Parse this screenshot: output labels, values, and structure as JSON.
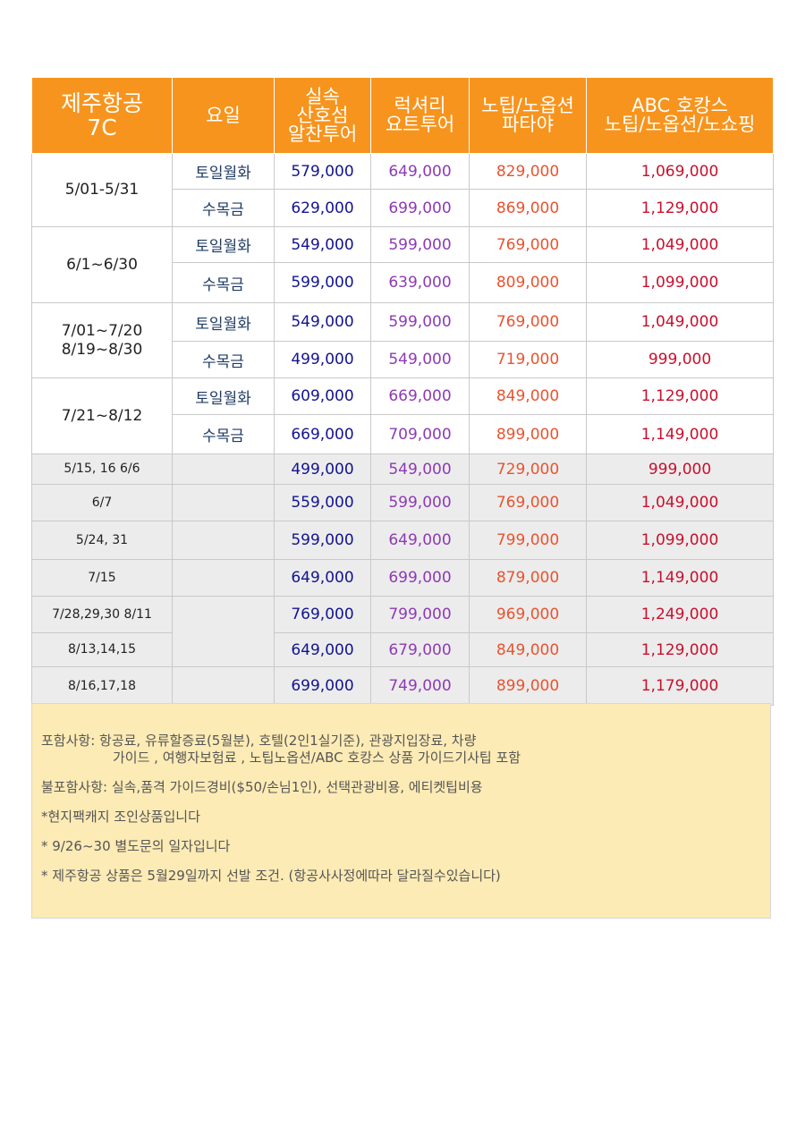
{
  "header": {
    "airline": [
      "제주항공",
      "7C"
    ],
    "day_col": "요일",
    "products": [
      [
        "실속",
        "산호섬",
        "알찬투어"
      ],
      [
        "럭셔리",
        "요트투어"
      ],
      [
        "노팁/노옵션",
        "파타야"
      ],
      [
        "ABC 호캉스",
        "노팁/노옵션/노쇼핑"
      ]
    ]
  },
  "periods": [
    {
      "label": [
        "5/01-5/31"
      ],
      "rows": [
        {
          "day": "토일월화",
          "prices": [
            "579,000",
            "649,000",
            "829,000",
            "1,069,000"
          ]
        },
        {
          "day": "수목금",
          "prices": [
            "629,000",
            "699,000",
            "869,000",
            "1,129,000"
          ]
        }
      ]
    },
    {
      "label": [
        "6/1~6/30"
      ],
      "rows": [
        {
          "day": "토일월화",
          "prices": [
            "549,000",
            "599,000",
            "769,000",
            "1,049,000"
          ]
        },
        {
          "day": "수목금",
          "prices": [
            "599,000",
            "639,000",
            "809,000",
            "1,099,000"
          ]
        }
      ]
    },
    {
      "label": [
        "7/01~7/20",
        "8/19~8/30"
      ],
      "rows": [
        {
          "day": "토일월화",
          "prices": [
            "549,000",
            "599,000",
            "769,000",
            "1,049,000"
          ]
        },
        {
          "day": "수목금",
          "prices": [
            "499,000",
            "549,000",
            "719,000",
            "999,000"
          ]
        }
      ]
    },
    {
      "label": [
        "7/21~8/12"
      ],
      "rows": [
        {
          "day": "토일월화",
          "prices": [
            "609,000",
            "669,000",
            "849,000",
            "1,129,000"
          ]
        },
        {
          "day": "수목금",
          "prices": [
            "669,000",
            "709,000",
            "899,000",
            "1,149,000"
          ]
        }
      ]
    }
  ],
  "special_dates": [
    {
      "date": "5/15, 16  6/6",
      "prices": [
        "499,000",
        "549,000",
        "729,000",
        "999,000"
      ]
    },
    {
      "date": "6/7",
      "prices": [
        "559,000",
        "599,000",
        "769,000",
        "1,049,000"
      ]
    },
    {
      "date": "5/24, 31",
      "prices": [
        "599,000",
        "649,000",
        "799,000",
        "1,099,000"
      ]
    },
    {
      "date": "7/15",
      "prices": [
        "649,000",
        "699,000",
        "879,000",
        "1,149,000"
      ]
    },
    {
      "date": "7/28,29,30  8/11",
      "prices": [
        "769,000",
        "799,000",
        "969,000",
        "1,249,000"
      ]
    },
    {
      "date": "8/13,14,15",
      "prices": [
        "649,000",
        "679,000",
        "849,000",
        "1,129,000"
      ]
    },
    {
      "date": "8/16,17,18",
      "prices": [
        "699,000",
        "749,000",
        "899,000",
        "1,179,000"
      ]
    }
  ],
  "notes": {
    "included_line1": "포함사항: 항공료, 유류할증료(5월분), 호텔(2인1실기준), 관광지입장료, 차량",
    "included_line2": "가이드 , 여행자보험료 ,  노팁노옵션/ABC 호캉스 상품 가이드기사팁 포함",
    "excluded": "불포함사항: 실속,품격 가이드경비($50/손님1인), 선택관광비용, 에티켓팁비용",
    "local_package": "*현지팩캐지 조인상품입니다",
    "inquiry": "* 9/26~30 별도문의 일자입니다",
    "condition": "* 제주항공 상품은 5월29일까지 선발 조건.  (항공사사정에따라 달라질수있습니다)"
  },
  "colors": {
    "header_bg": "#f7941d",
    "notes_bg": "#fdebb5",
    "price_basic": "#13148f",
    "price_luxury": "#8e3ab5",
    "price_notip": "#e8542f",
    "price_abc": "#c8102e"
  }
}
